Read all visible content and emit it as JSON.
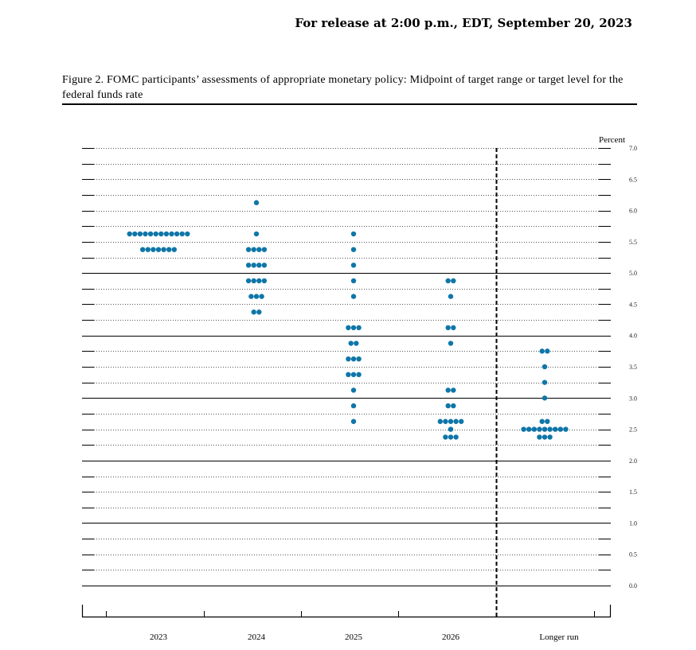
{
  "header": {
    "release": "For release at 2:00 p.m., EDT, September 20, 2023"
  },
  "caption": "Figure 2.  FOMC participants’ assessments of appropriate monetary policy: Midpoint of target range or target level for the federal funds rate",
  "chart_data": {
    "type": "scatter",
    "ylabel": "Percent",
    "ylim": [
      0,
      7.0
    ],
    "yticks": [
      "0.0",
      "0.5",
      "1.0",
      "1.5",
      "2.0",
      "2.5",
      "3.0",
      "3.5",
      "4.0",
      "4.5",
      "5.0",
      "5.5",
      "6.0",
      "6.5",
      "7.0"
    ],
    "categories": [
      "2023",
      "2024",
      "2025",
      "2026",
      "Longer run"
    ],
    "dot_color": "#0f76a8",
    "series": [
      {
        "category": "2023",
        "points": [
          {
            "y": 5.625,
            "count": 12
          },
          {
            "y": 5.375,
            "count": 7
          }
        ]
      },
      {
        "category": "2024",
        "points": [
          {
            "y": 6.125,
            "count": 1
          },
          {
            "y": 5.625,
            "count": 1
          },
          {
            "y": 5.375,
            "count": 4
          },
          {
            "y": 5.125,
            "count": 4
          },
          {
            "y": 4.875,
            "count": 4
          },
          {
            "y": 4.625,
            "count": 3
          },
          {
            "y": 4.375,
            "count": 2
          }
        ]
      },
      {
        "category": "2025",
        "points": [
          {
            "y": 5.625,
            "count": 1
          },
          {
            "y": 5.375,
            "count": 1
          },
          {
            "y": 5.125,
            "count": 1
          },
          {
            "y": 4.875,
            "count": 1
          },
          {
            "y": 4.625,
            "count": 1
          },
          {
            "y": 4.125,
            "count": 3
          },
          {
            "y": 3.875,
            "count": 2
          },
          {
            "y": 3.625,
            "count": 3
          },
          {
            "y": 3.375,
            "count": 3
          },
          {
            "y": 3.125,
            "count": 1
          },
          {
            "y": 2.875,
            "count": 1
          },
          {
            "y": 2.625,
            "count": 1
          }
        ]
      },
      {
        "category": "2026",
        "points": [
          {
            "y": 4.875,
            "count": 2
          },
          {
            "y": 4.625,
            "count": 1
          },
          {
            "y": 4.125,
            "count": 2
          },
          {
            "y": 3.875,
            "count": 1
          },
          {
            "y": 3.125,
            "count": 2
          },
          {
            "y": 2.875,
            "count": 2
          },
          {
            "y": 2.625,
            "count": 5
          },
          {
            "y": 2.5,
            "count": 1
          },
          {
            "y": 2.375,
            "count": 3
          }
        ]
      },
      {
        "category": "Longer run",
        "points": [
          {
            "y": 3.75,
            "count": 2
          },
          {
            "y": 3.5,
            "count": 1
          },
          {
            "y": 3.25,
            "count": 1
          },
          {
            "y": 3.0,
            "count": 1
          },
          {
            "y": 2.625,
            "count": 2
          },
          {
            "y": 2.5,
            "count": 9
          },
          {
            "y": 2.375,
            "count": 3
          }
        ]
      }
    ]
  }
}
